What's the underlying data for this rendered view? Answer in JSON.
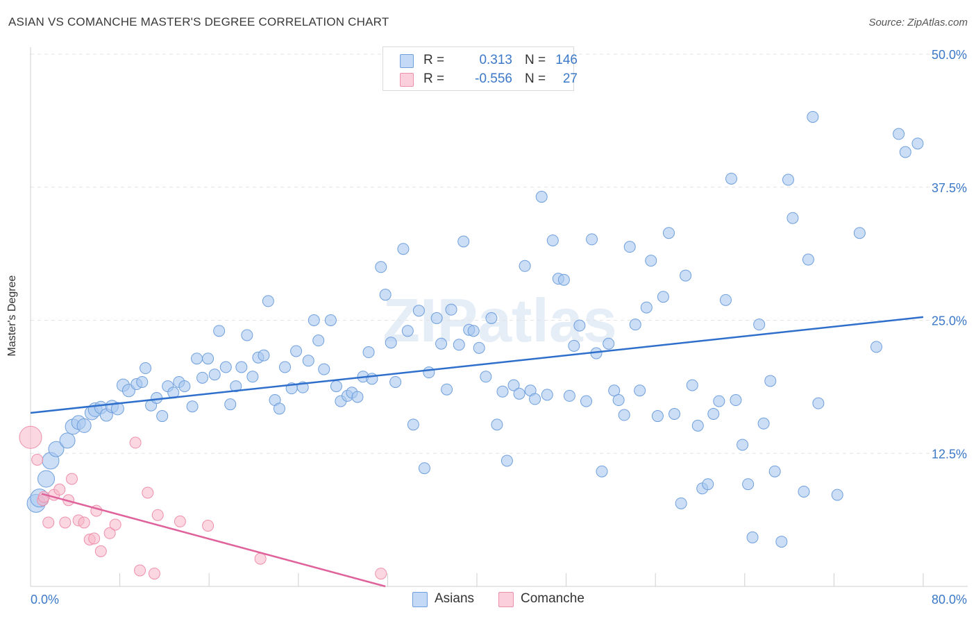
{
  "title": "ASIAN VS COMANCHE MASTER'S DEGREE CORRELATION CHART",
  "source": "Source: ZipAtlas.com",
  "watermark": "ZIPatlas",
  "legend": {
    "rows": [
      {
        "r_label": "R =",
        "r_value": "0.313",
        "n_label": "N =",
        "n_value": "146",
        "color": "#a9c8f0"
      },
      {
        "r_label": "R =",
        "r_value": "-0.556",
        "n_label": "N =",
        "n_value": "27",
        "color": "#f7b6c8"
      }
    ]
  },
  "bottom_legend": [
    {
      "label": "Asians",
      "color": "#a9c8f0"
    },
    {
      "label": "Comanche",
      "color": "#f7b6c8"
    }
  ],
  "chart_data": {
    "type": "scatter",
    "title": "ASIAN VS COMANCHE MASTER'S DEGREE CORRELATION CHART",
    "xlabel": "",
    "ylabel": "Master's Degree",
    "xlim": [
      0,
      80
    ],
    "ylim": [
      0,
      50
    ],
    "x_tick_labels": [
      "0.0%",
      "80.0%"
    ],
    "y_ticks": [
      12.5,
      25.0,
      37.5,
      50.0
    ],
    "y_tick_labels": [
      "12.5%",
      "25.0%",
      "37.5%",
      "50.0%"
    ],
    "grid": true,
    "legend_position": "top-center",
    "colors": {
      "asians_fill": "#a9c8f0",
      "asians_stroke": "#6f9fdc",
      "asians_line": "#2f6fcc",
      "comanche_fill": "#f7b6c8",
      "comanche_stroke": "#ee8fab",
      "comanche_line": "#e0629a",
      "axis_text": "#3b78c8"
    },
    "series": [
      {
        "name": "Asians",
        "trend": {
          "x": [
            0,
            80
          ],
          "y": [
            16.3,
            25.3
          ]
        },
        "points": [
          [
            0.5,
            7.8
          ],
          [
            0.8,
            8.3
          ],
          [
            1.4,
            10.1
          ],
          [
            1.8,
            11.8
          ],
          [
            2.3,
            12.9
          ],
          [
            3.3,
            13.7
          ],
          [
            3.8,
            15.0
          ],
          [
            4.3,
            15.4
          ],
          [
            4.8,
            15.1
          ],
          [
            5.5,
            16.3
          ],
          [
            5.8,
            16.6
          ],
          [
            6.3,
            16.8
          ],
          [
            6.8,
            16.1
          ],
          [
            7.3,
            16.9
          ],
          [
            7.8,
            16.7
          ],
          [
            8.3,
            18.9
          ],
          [
            8.8,
            18.4
          ],
          [
            9.5,
            19.0
          ],
          [
            10.0,
            19.2
          ],
          [
            10.3,
            20.5
          ],
          [
            10.8,
            17.0
          ],
          [
            11.3,
            17.7
          ],
          [
            11.8,
            16.0
          ],
          [
            12.3,
            18.8
          ],
          [
            12.8,
            18.2
          ],
          [
            13.3,
            19.2
          ],
          [
            13.8,
            18.8
          ],
          [
            14.5,
            16.9
          ],
          [
            14.9,
            21.4
          ],
          [
            15.4,
            19.6
          ],
          [
            15.9,
            21.4
          ],
          [
            16.5,
            19.9
          ],
          [
            16.9,
            24.0
          ],
          [
            17.5,
            20.6
          ],
          [
            17.9,
            17.1
          ],
          [
            18.4,
            18.8
          ],
          [
            18.9,
            20.6
          ],
          [
            19.4,
            23.6
          ],
          [
            19.9,
            19.7
          ],
          [
            20.4,
            21.5
          ],
          [
            20.9,
            21.7
          ],
          [
            21.3,
            26.8
          ],
          [
            21.9,
            17.5
          ],
          [
            22.3,
            16.7
          ],
          [
            22.8,
            20.6
          ],
          [
            23.4,
            18.6
          ],
          [
            23.8,
            22.1
          ],
          [
            24.4,
            18.7
          ],
          [
            24.9,
            21.2
          ],
          [
            25.4,
            25.0
          ],
          [
            25.8,
            23.1
          ],
          [
            26.3,
            20.4
          ],
          [
            26.9,
            25.0
          ],
          [
            27.4,
            18.8
          ],
          [
            27.8,
            17.4
          ],
          [
            28.4,
            17.9
          ],
          [
            28.8,
            18.2
          ],
          [
            29.3,
            17.8
          ],
          [
            29.8,
            19.7
          ],
          [
            30.3,
            22.0
          ],
          [
            30.6,
            19.5
          ],
          [
            31.4,
            30.0
          ],
          [
            31.8,
            27.4
          ],
          [
            32.3,
            22.9
          ],
          [
            32.7,
            19.2
          ],
          [
            33.4,
            31.7
          ],
          [
            33.8,
            24.0
          ],
          [
            34.3,
            15.2
          ],
          [
            34.8,
            25.9
          ],
          [
            35.3,
            11.1
          ],
          [
            35.7,
            20.1
          ],
          [
            36.4,
            25.2
          ],
          [
            36.8,
            22.8
          ],
          [
            37.3,
            18.5
          ],
          [
            37.7,
            26.0
          ],
          [
            38.4,
            22.7
          ],
          [
            38.8,
            32.4
          ],
          [
            39.3,
            24.1
          ],
          [
            39.7,
            24.0
          ],
          [
            40.2,
            22.4
          ],
          [
            40.8,
            19.7
          ],
          [
            41.3,
            25.2
          ],
          [
            41.8,
            15.2
          ],
          [
            42.3,
            18.3
          ],
          [
            42.7,
            11.8
          ],
          [
            43.3,
            18.9
          ],
          [
            43.8,
            18.1
          ],
          [
            44.3,
            30.1
          ],
          [
            44.8,
            18.4
          ],
          [
            45.2,
            17.6
          ],
          [
            45.8,
            36.6
          ],
          [
            46.3,
            18.0
          ],
          [
            46.8,
            32.5
          ],
          [
            47.3,
            28.9
          ],
          [
            47.8,
            28.8
          ],
          [
            48.3,
            17.9
          ],
          [
            48.7,
            22.6
          ],
          [
            49.2,
            24.5
          ],
          [
            49.8,
            17.4
          ],
          [
            50.3,
            32.6
          ],
          [
            50.7,
            21.9
          ],
          [
            51.2,
            10.8
          ],
          [
            51.8,
            22.8
          ],
          [
            52.3,
            18.4
          ],
          [
            52.7,
            17.5
          ],
          [
            53.2,
            16.1
          ],
          [
            53.7,
            31.9
          ],
          [
            54.2,
            24.6
          ],
          [
            54.6,
            18.4
          ],
          [
            55.2,
            26.2
          ],
          [
            55.6,
            30.6
          ],
          [
            56.2,
            16.0
          ],
          [
            56.7,
            27.2
          ],
          [
            57.2,
            33.2
          ],
          [
            57.7,
            16.2
          ],
          [
            58.3,
            7.8
          ],
          [
            58.7,
            29.2
          ],
          [
            59.3,
            18.9
          ],
          [
            59.8,
            15.1
          ],
          [
            60.2,
            9.2
          ],
          [
            60.7,
            9.6
          ],
          [
            61.2,
            16.2
          ],
          [
            61.7,
            17.4
          ],
          [
            62.3,
            26.9
          ],
          [
            62.8,
            38.3
          ],
          [
            63.2,
            17.5
          ],
          [
            63.8,
            13.3
          ],
          [
            64.3,
            9.6
          ],
          [
            64.7,
            4.6
          ],
          [
            65.3,
            24.6
          ],
          [
            65.7,
            15.3
          ],
          [
            66.3,
            19.3
          ],
          [
            66.7,
            10.8
          ],
          [
            67.3,
            4.2
          ],
          [
            67.9,
            38.2
          ],
          [
            68.3,
            34.6
          ],
          [
            69.3,
            8.9
          ],
          [
            69.7,
            30.7
          ],
          [
            70.1,
            44.1
          ],
          [
            70.6,
            17.2
          ],
          [
            72.3,
            8.6
          ],
          [
            74.3,
            33.2
          ],
          [
            75.8,
            22.5
          ],
          [
            77.8,
            42.5
          ],
          [
            78.4,
            40.8
          ],
          [
            79.5,
            41.6
          ]
        ]
      },
      {
        "name": "Comanche",
        "trend": {
          "x": [
            1,
            31.8
          ],
          "y": [
            8.7,
            0.0
          ]
        },
        "points": [
          [
            0.0,
            14.0
          ],
          [
            0.6,
            11.9
          ],
          [
            1.1,
            8.1
          ],
          [
            1.6,
            6.0
          ],
          [
            2.1,
            8.6
          ],
          [
            2.6,
            9.1
          ],
          [
            3.1,
            6.0
          ],
          [
            3.4,
            8.1
          ],
          [
            3.7,
            10.1
          ],
          [
            4.3,
            6.2
          ],
          [
            4.8,
            6.0
          ],
          [
            5.3,
            4.4
          ],
          [
            5.7,
            4.5
          ],
          [
            5.9,
            7.1
          ],
          [
            6.3,
            3.3
          ],
          [
            7.1,
            5.0
          ],
          [
            7.6,
            5.8
          ],
          [
            9.4,
            13.5
          ],
          [
            9.8,
            1.5
          ],
          [
            10.5,
            8.8
          ],
          [
            11.1,
            1.2
          ],
          [
            11.4,
            6.7
          ],
          [
            13.4,
            6.1
          ],
          [
            15.9,
            5.7
          ],
          [
            20.6,
            2.6
          ],
          [
            31.4,
            1.2
          ],
          [
            1.2,
            8.4
          ]
        ]
      }
    ]
  }
}
